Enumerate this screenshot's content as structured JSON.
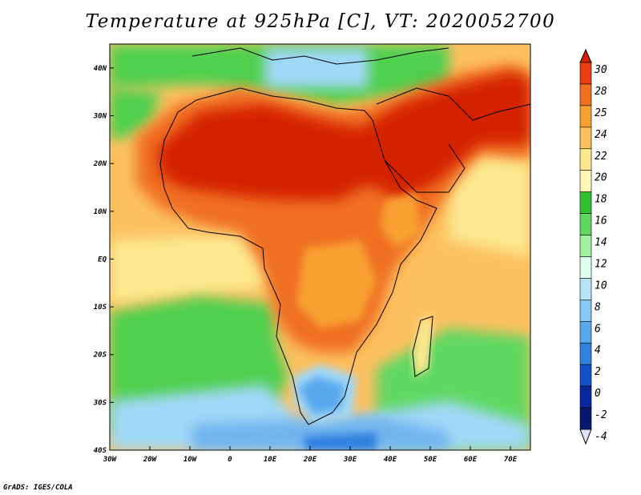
{
  "title": "Temperature at 925hPa [C], VT: 2020052700",
  "credit": "GrADS: IGES/COLA",
  "map": {
    "lon_range": [
      -30,
      75
    ],
    "lat_range": [
      -40,
      45
    ],
    "lon_ticks": [
      {
        "lon": -30,
        "label": "30W"
      },
      {
        "lon": -20,
        "label": "20W"
      },
      {
        "lon": -10,
        "label": "10W"
      },
      {
        "lon": 0,
        "label": "0"
      },
      {
        "lon": 10,
        "label": "10E"
      },
      {
        "lon": 20,
        "label": "20E"
      },
      {
        "lon": 30,
        "label": "30E"
      },
      {
        "lon": 40,
        "label": "40E"
      },
      {
        "lon": 50,
        "label": "50E"
      },
      {
        "lon": 60,
        "label": "60E"
      },
      {
        "lon": 70,
        "label": "70E"
      }
    ],
    "lat_ticks": [
      {
        "lat": 40,
        "label": "40N"
      },
      {
        "lat": 30,
        "label": "30N"
      },
      {
        "lat": 20,
        "label": "20N"
      },
      {
        "lat": 10,
        "label": "10N"
      },
      {
        "lat": 0,
        "label": "EQ"
      },
      {
        "lat": -10,
        "label": "10S"
      },
      {
        "lat": -20,
        "label": "20S"
      },
      {
        "lat": -30,
        "label": "30S"
      },
      {
        "lat": -40,
        "label": "40S"
      }
    ],
    "colors": {
      "ocean_tropical": "#fdc060",
      "ocean_south": "#50d050",
      "ocean_cold": "#a0d8f8",
      "land_hot": "#e03010",
      "land_warm": "#f07020",
      "north_cool": "#60d060",
      "coastline": "#000000"
    }
  },
  "colorbar": {
    "levels": [
      "30",
      "28",
      "25",
      "24",
      "22",
      "20",
      "18",
      "16",
      "14",
      "12",
      "10",
      "8",
      "6",
      "4",
      "2",
      "0",
      "-2",
      "-4"
    ],
    "colors": [
      "#d42000",
      "#e84010",
      "#f07020",
      "#f8a030",
      "#fdc060",
      "#fde890",
      "#fff6b8",
      "#30c030",
      "#60d860",
      "#a0f0a0",
      "#e0fff0",
      "#b8e4fa",
      "#88c8f4",
      "#58a8ee",
      "#3080e0",
      "#1050c8",
      "#0828a0",
      "#081870",
      "#e0e0ff"
    ]
  }
}
